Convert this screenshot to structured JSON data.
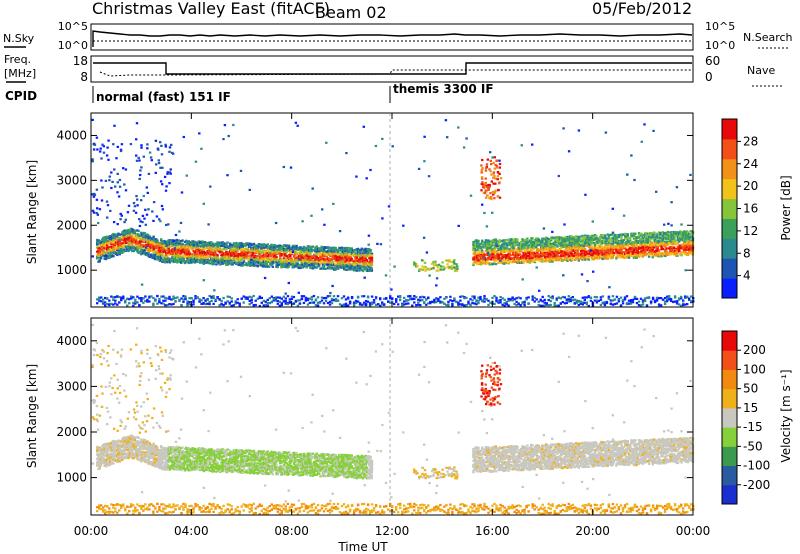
{
  "header": {
    "title": "Christmas Valley East (fitACF)",
    "beam": "Beam 02",
    "date": "05/Feb/2012"
  },
  "strip_panels": {
    "nsky_label": "N.Sky",
    "nsearch_label": "N.Search",
    "count_ticks_left": [
      "10^5",
      "10^0"
    ],
    "count_ticks_right": [
      "10^5",
      "10^0"
    ],
    "freq_label_top": "Freq.",
    "freq_label_bottom": "[MHz]",
    "freq_ticks": [
      "18",
      "8"
    ],
    "nave_label": "Nave",
    "nave_ticks": [
      "60",
      "0"
    ],
    "cpid_label": "CPID",
    "cpid_segments": [
      {
        "start_hour": 0,
        "text": "normal (fast) 151 IF"
      },
      {
        "start_hour": 12,
        "text": "themis 3300 IF"
      }
    ]
  },
  "chart_data": [
    {
      "type": "heatmap",
      "quantity": "Power",
      "ylabel": "Slant Range [km]",
      "y_ticks": [
        1000,
        2000,
        3000,
        4000
      ],
      "ylim": [
        180,
        4500
      ],
      "x_ticks": [
        "00:00",
        "04:00",
        "08:00",
        "12:00",
        "16:00",
        "20:00",
        "00:00"
      ],
      "xlim_hours": [
        0,
        24
      ],
      "colorbar": {
        "label": "Power [dB]",
        "ticks": [
          "4",
          "8",
          "12",
          "16",
          "20",
          "24",
          "28"
        ],
        "range": [
          0,
          32
        ],
        "colors": [
          "#0a1fff",
          "#1e54b4",
          "#2a8a8f",
          "#3aa05a",
          "#86c43a",
          "#f0c21a",
          "#f29118",
          "#f25018",
          "#e80a0a"
        ]
      },
      "structures": [
        {
          "name": "main echo band",
          "time_hours": [
            0.2,
            11.2
          ],
          "center_range_km": [
            1450,
            1250
          ]
        },
        {
          "name": "return echo band",
          "time_hours": [
            15.2,
            24
          ],
          "center_range_km": [
            1350,
            1550
          ]
        },
        {
          "name": "far patch",
          "time_hours": [
            15.5,
            16.3
          ],
          "center_range_km": [
            3500,
            2600
          ]
        }
      ]
    },
    {
      "type": "heatmap",
      "quantity": "Velocity",
      "ylabel": "Slant Range [km]",
      "y_ticks": [
        1000,
        2000,
        3000,
        4000
      ],
      "ylim": [
        180,
        4500
      ],
      "x_ticks": [
        "00:00",
        "04:00",
        "08:00",
        "12:00",
        "16:00",
        "20:00",
        "00:00"
      ],
      "xlabel": "Time UT",
      "colorbar": {
        "label": "Velocity [m s⁻¹]",
        "ticks": [
          "200",
          "100",
          "50",
          "15",
          "-15",
          "-50",
          "-100",
          "-200"
        ],
        "colors": [
          "#1a2fd0",
          "#2a5aa0",
          "#3a9a50",
          "#86d03a",
          "#c8c8c0",
          "#f0b01a",
          "#f28a10",
          "#f25018",
          "#e80a0a"
        ]
      }
    }
  ]
}
